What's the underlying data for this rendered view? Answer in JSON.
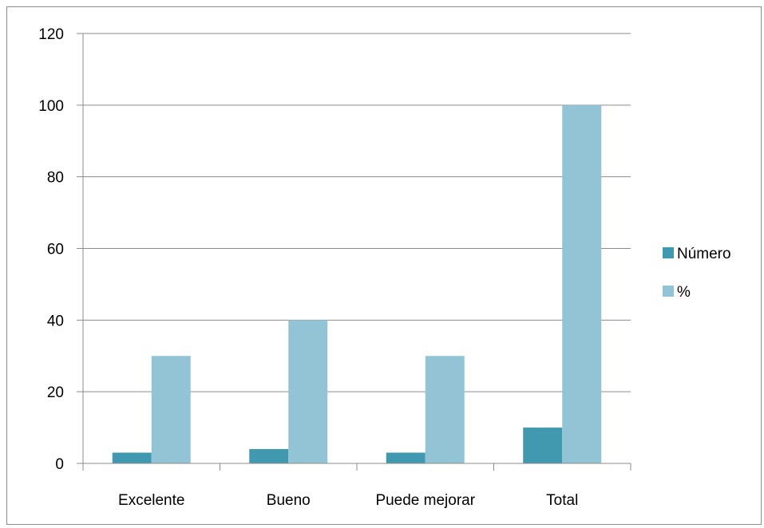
{
  "chart_data": {
    "type": "bar",
    "title": "",
    "xlabel": "",
    "ylabel": "",
    "categories": [
      "Excelente",
      "Bueno",
      "Puede mejorar",
      "Total"
    ],
    "series": [
      {
        "name": "Número",
        "values": [
          3,
          4,
          3,
          10
        ],
        "color": "#4199b0"
      },
      {
        "name": "%",
        "values": [
          30,
          40,
          30,
          100
        ],
        "color": "#93c4d6"
      }
    ],
    "ylim": [
      0,
      120
    ],
    "yticks": [
      0,
      20,
      40,
      60,
      80,
      100,
      120
    ],
    "grid": true,
    "legend_position": "right"
  }
}
